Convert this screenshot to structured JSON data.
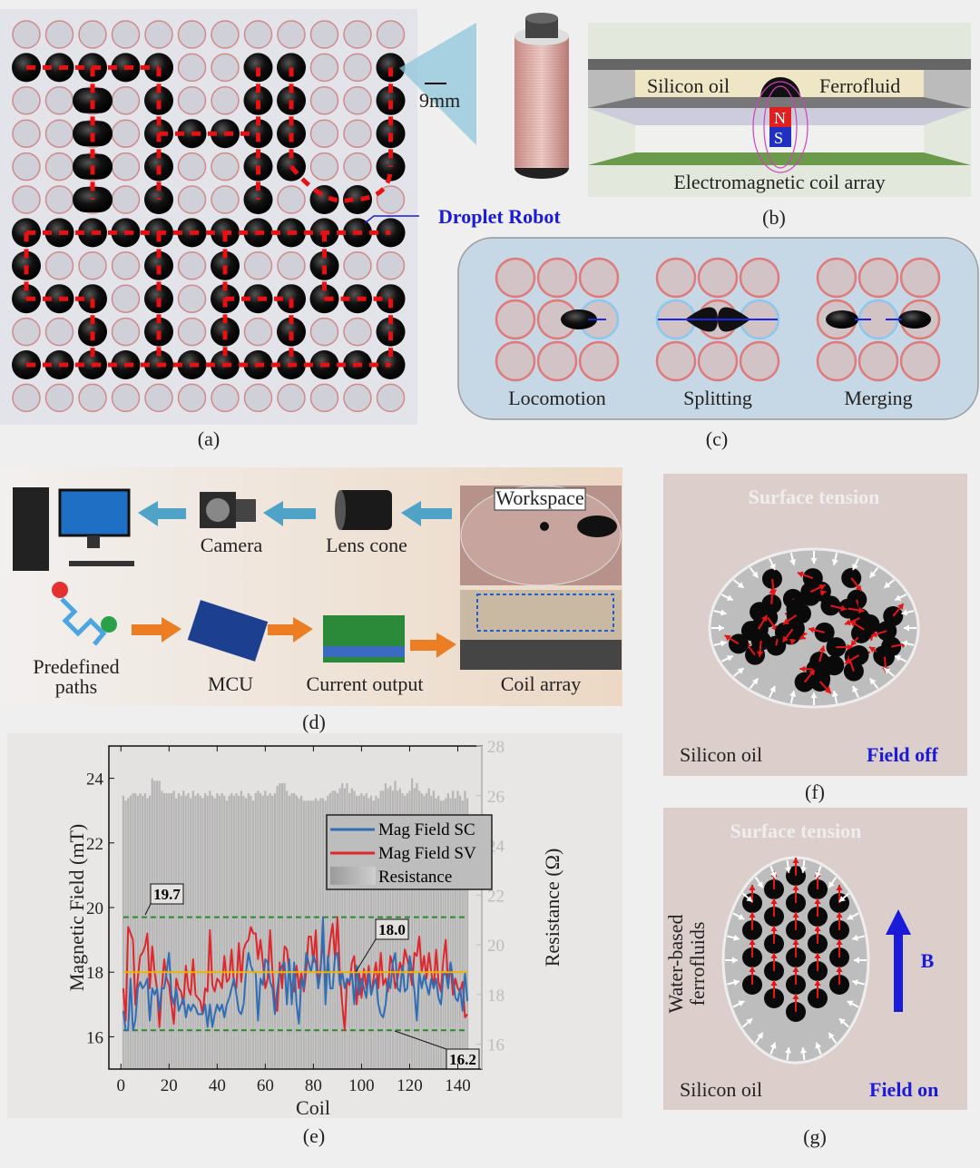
{
  "panels": {
    "a": {
      "caption": "(a)",
      "scale_label": "9mm",
      "droplet_label": "Droplet Robot",
      "grid_size": 12,
      "occupied_rows": [
        [],
        [
          0,
          1,
          2,
          3,
          4,
          7,
          8,
          11
        ],
        [
          2,
          4,
          7,
          8,
          11
        ],
        [
          2,
          4,
          5,
          6,
          7,
          8,
          11
        ],
        [
          2,
          4,
          7,
          8,
          11
        ],
        [
          2,
          4,
          7,
          9,
          10
        ],
        [
          0,
          1,
          2,
          3,
          4,
          5,
          6,
          7,
          8,
          9,
          10,
          11
        ],
        [
          0,
          4,
          6,
          9
        ],
        [
          0,
          1,
          2,
          4,
          6,
          7,
          8,
          9,
          10,
          11
        ],
        [
          2,
          4,
          6,
          8,
          11
        ],
        [
          0,
          1,
          2,
          3,
          4,
          5,
          6,
          7,
          8,
          9,
          10,
          11
        ],
        []
      ]
    },
    "b": {
      "caption": "(b)",
      "silicon_oil": "Silicon oil",
      "ferrofluid": "Ferrofluid",
      "coil_array": "Electromagnetic coil array",
      "magnet_n": "N",
      "magnet_s": "S"
    },
    "c": {
      "caption": "(c)",
      "locomotion": "Locomotion",
      "splitting": "Splitting",
      "merging": "Merging"
    },
    "d": {
      "caption": "(d)",
      "camera": "Camera",
      "lens_cone": "Lens cone",
      "workspace": "Workspace",
      "predefined_paths_1": "Predefined",
      "predefined_paths_2": "paths",
      "mcu": "MCU",
      "current_output": "Current output",
      "coil_array": "Coil array"
    },
    "e": {
      "caption": "(e)"
    },
    "f": {
      "caption": "(f)",
      "surface_tension": "Surface tension",
      "silicon_oil": "Silicon oil",
      "state": "Field off"
    },
    "g": {
      "caption": "(g)",
      "surface_tension": "Surface tension",
      "silicon_oil": "Silicon oil",
      "state": "Field on",
      "fluid_1": "Water-based",
      "fluid_2": "ferrofluids",
      "field_label": "B"
    }
  },
  "colors": {
    "sc": "#2f6db5",
    "sv": "#e0262b",
    "mean": "#f2b400",
    "limits": "#2a8a2a",
    "accent_blue": "#1a1adb"
  },
  "chart_data": {
    "type": "line",
    "xlabel": "Coil",
    "ylabel": "Magnetic Field (mT)",
    "y2label": "Resistance (Ω)",
    "xlim": [
      -5,
      150
    ],
    "ylim": [
      15,
      25
    ],
    "y2lim": [
      15,
      28
    ],
    "xticks": [
      "0",
      "20",
      "40",
      "60",
      "80",
      "100",
      "120",
      "140"
    ],
    "yticks": [
      "16",
      "18",
      "20",
      "22",
      "24"
    ],
    "y2ticks": [
      "16",
      "18",
      "20",
      "22",
      "24",
      "26",
      "28"
    ],
    "x_range": [
      1,
      144
    ],
    "legend": {
      "placement": "top-right",
      "entries": [
        "Mag Field SC",
        "Mag Field SV",
        "Resistance"
      ]
    },
    "annotations": [
      {
        "label": "19.7",
        "value": 19.7
      },
      {
        "label": "18.0",
        "value": 18.0
      },
      {
        "label": "16.2",
        "value": 16.2
      }
    ],
    "series": [
      {
        "name": "Mag Field SC",
        "axis": "left",
        "values": [
          16.8,
          16.2,
          16.2,
          17.8,
          16.2,
          16.5,
          17.5,
          17.7,
          17.5,
          17.6,
          17.8,
          16.5,
          17.5,
          17.3,
          17.5,
          16.8,
          17.5,
          17.5,
          18.0,
          18.6,
          17.3,
          17.0,
          17.5,
          16.8,
          17.0,
          17.2,
          16.6,
          17.0,
          16.8,
          17.0,
          16.9,
          16.7,
          16.7,
          16.7,
          17.0,
          16.3,
          17.0,
          16.3,
          16.7,
          17.0,
          16.8,
          17.0,
          16.6,
          17.0,
          17.2,
          17.5,
          17.8,
          17.3,
          16.8,
          16.7,
          17.0,
          18.0,
          18.6,
          18.2,
          18.0,
          18.0,
          16.5,
          17.8,
          17.6,
          18.4,
          18.3,
          17.7,
          17.5,
          16.7,
          17.5,
          18.0,
          18.2,
          18.3,
          17.0,
          18.4,
          17.0,
          18.3,
          17.0,
          16.4,
          17.8,
          17.5,
          18.6,
          18.3,
          18.0,
          18.5,
          18.3,
          17.5,
          18.0,
          19.7,
          17.0,
          18.5,
          17.5,
          17.5,
          18.5,
          18.6,
          17.6,
          18.0,
          17.5,
          17.8,
          17.7,
          18.0,
          17.0,
          18.2,
          17.3,
          17.8,
          17.5,
          17.2,
          18.0,
          17.3,
          17.6,
          17.8,
          17.0,
          16.7,
          16.6,
          17.0,
          17.8,
          17.5,
          18.3,
          18.6,
          17.5,
          17.4,
          18.2,
          17.4,
          17.5,
          18.5,
          18.0,
          17.4,
          16.5,
          18.0,
          17.5,
          17.9,
          17.6,
          17.3,
          17.8,
          17.5,
          17.8,
          17.2,
          17.0,
          17.9,
          18.0,
          17.5,
          18.3,
          17.8,
          17.2,
          17.1,
          17.5,
          16.8,
          18.0,
          17.1
        ]
      },
      {
        "name": "Mag Field SV",
        "axis": "left",
        "values": [
          17.5,
          16.5,
          19.4,
          19.2,
          19.0,
          17.0,
          17.8,
          18.5,
          18.6,
          18.8,
          19.2,
          17.5,
          18.8,
          18.0,
          17.5,
          16.3,
          17.5,
          18.4,
          17.8,
          17.6,
          17.0,
          16.4,
          17.8,
          17.5,
          17.4,
          17.0,
          18.2,
          17.5,
          17.3,
          18.4,
          17.3,
          17.2,
          17.1,
          16.7,
          17.5,
          17.4,
          19.3,
          17.6,
          17.4,
          17.8,
          17.7,
          17.5,
          18.5,
          17.7,
          17.8,
          18.7,
          17.6,
          17.5,
          18.9,
          17.7,
          18.7,
          18.9,
          19.0,
          19.4,
          19.2,
          19.2,
          18.4,
          19.0,
          18.3,
          17.5,
          17.8,
          19.3,
          18.0,
          17.0,
          16.8,
          18.3,
          17.5,
          18.8,
          18.7,
          18.0,
          17.5,
          17.4,
          18.2,
          17.5,
          18.0,
          17.4,
          18.0,
          19.1,
          19.1,
          18.3,
          19.3,
          17.5,
          18.2,
          19.0,
          17.6,
          18.3,
          19.0,
          19.5,
          18.4,
          19.7,
          18.0,
          17.0,
          16.2,
          17.8,
          17.6,
          18.3,
          18.5,
          17.0,
          18.0,
          17.2,
          18.1,
          17.5,
          18.2,
          17.3,
          17.8,
          18.3,
          17.5,
          18.6,
          17.6,
          17.8,
          17.4,
          18.5,
          18.2,
          17.5,
          17.8,
          18.3,
          18.0,
          18.7,
          18.4,
          18.1,
          17.6,
          18.6,
          18.5,
          19.1,
          18.0,
          18.5,
          17.8,
          18.6,
          18.0,
          17.5,
          18.7,
          17.7,
          17.4,
          18.4,
          19.0,
          17.6,
          18.3,
          17.3,
          17.8,
          17.5,
          17.4,
          17.7,
          16.6,
          16.7
        ]
      },
      {
        "name": "Resistance",
        "axis": "right",
        "type": "bar",
        "values": [
          26.0,
          25.8,
          25.9,
          26.0,
          26.1,
          26.1,
          26.0,
          26.1,
          26.0,
          26.1,
          25.9,
          26.0,
          26.7,
          26.6,
          26.6,
          26.6,
          26.2,
          26.1,
          26.1,
          26.1,
          26.1,
          26.2,
          25.9,
          26.1,
          26.0,
          26.2,
          26.0,
          26.1,
          25.9,
          26.2,
          26.0,
          26.1,
          26.0,
          25.9,
          26.1,
          26.0,
          26.2,
          26.0,
          25.9,
          26.1,
          26.0,
          26.1,
          26.0,
          25.8,
          26.0,
          26.1,
          26.0,
          26.1,
          26.0,
          26.2,
          26.0,
          25.9,
          26.1,
          26.0,
          25.8,
          26.1,
          26.2,
          26.1,
          26.0,
          26.2,
          26.0,
          26.1,
          26.0,
          26.1,
          26.4,
          26.5,
          26.5,
          26.5,
          26.2,
          26.0,
          26.1,
          26.1,
          26.0,
          25.9,
          26.0,
          25.8,
          25.8,
          25.8,
          25.8,
          25.8,
          25.9,
          25.8,
          25.9,
          25.9,
          25.8,
          26.0,
          26.1,
          26.2,
          26.2,
          26.1,
          26.3,
          26.5,
          26.3,
          26.5,
          26.1,
          26.3,
          26.2,
          26.0,
          26.0,
          26.1,
          26.0,
          26.1,
          25.9,
          26.0,
          25.8,
          26.0,
          25.9,
          26.2,
          26.2,
          26.5,
          26.3,
          26.4,
          26.2,
          26.6,
          26.2,
          26.3,
          26.1,
          26.0,
          26.1,
          26.2,
          26.7,
          26.3,
          26.5,
          26.2,
          26.1,
          26.0,
          26.1,
          26.3,
          26.0,
          26.2,
          25.9,
          26.0,
          25.8,
          25.8,
          25.9,
          26.1,
          25.9,
          26.2,
          25.9,
          26.2,
          26.0,
          25.8,
          26.2,
          25.9
        ]
      }
    ]
  }
}
